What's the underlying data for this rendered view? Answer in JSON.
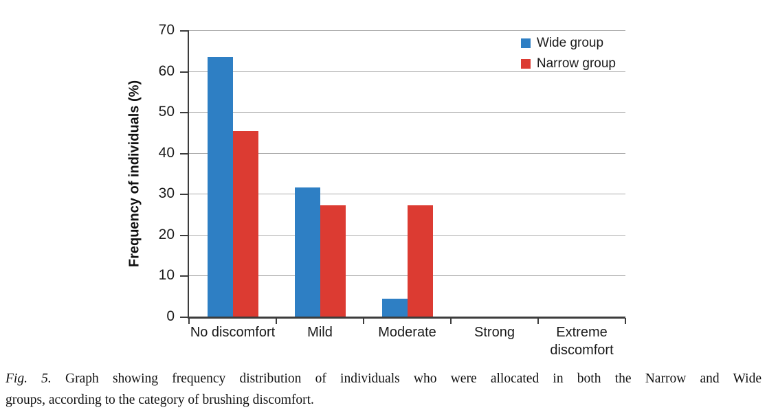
{
  "figure": {
    "caption": {
      "fig_label": "Fig. 5.",
      "line1": "Graph showing frequency distribution of individuals who were allocated in both the Narrow and Wide",
      "line2": "groups, according to the category of brushing discomfort."
    }
  },
  "chart_data": {
    "type": "bar",
    "title": "",
    "xlabel": "",
    "ylabel": "Frequency of individuals (%)",
    "categories": [
      "No discomfort",
      "Mild",
      "Moderate",
      "Strong",
      "Extreme discomfort"
    ],
    "series": [
      {
        "name": "Wide group",
        "color": "#2e7fc4",
        "values": [
          63.6,
          31.8,
          4.5,
          0,
          0
        ]
      },
      {
        "name": "Narrow group",
        "color": "#dc3b32",
        "values": [
          45.5,
          27.3,
          27.3,
          0,
          0
        ]
      }
    ],
    "ylim": [
      0,
      70
    ],
    "ytick_step": 10,
    "grid": true,
    "legend_position": "top-right",
    "colors": {
      "gridline": "#ababab",
      "axis": "#3c3c3c",
      "text": "#1a1a1a"
    }
  }
}
